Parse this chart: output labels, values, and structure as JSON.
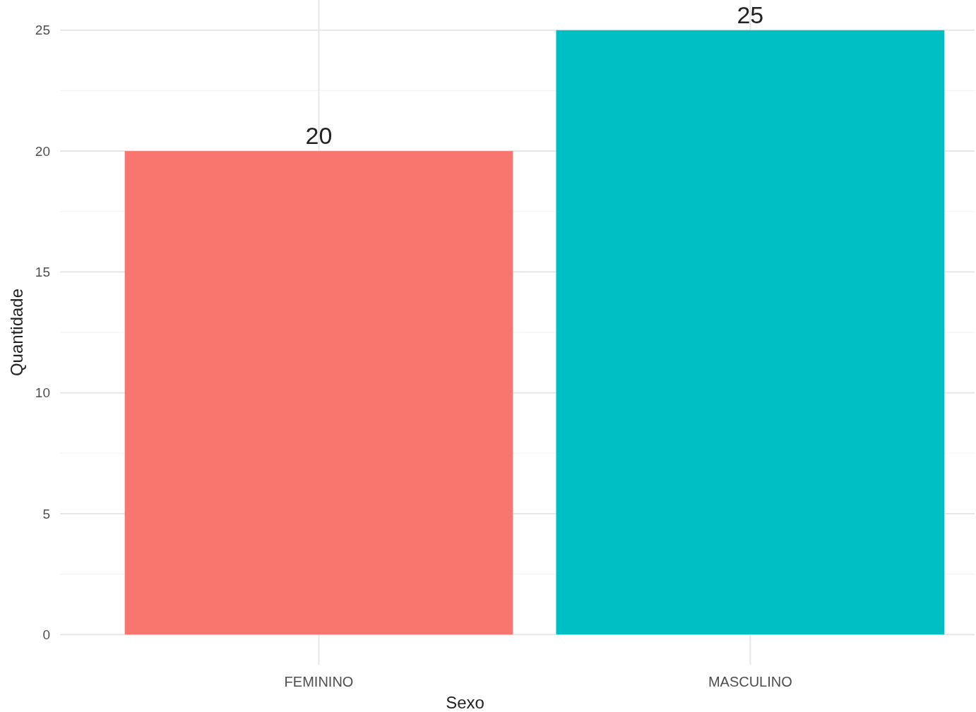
{
  "chart_data": {
    "type": "bar",
    "xlabel": "Sexo",
    "ylabel": "Quantidade",
    "categories": [
      "FEMININO",
      "MASCULINO"
    ],
    "values": [
      20,
      25
    ],
    "colors": [
      "#f8766d",
      "#00bfc4"
    ],
    "ylim": [
      -1.25,
      26.25
    ],
    "yticks": [
      0,
      5,
      10,
      15,
      20,
      25
    ],
    "grid": true,
    "data_labels": true
  }
}
